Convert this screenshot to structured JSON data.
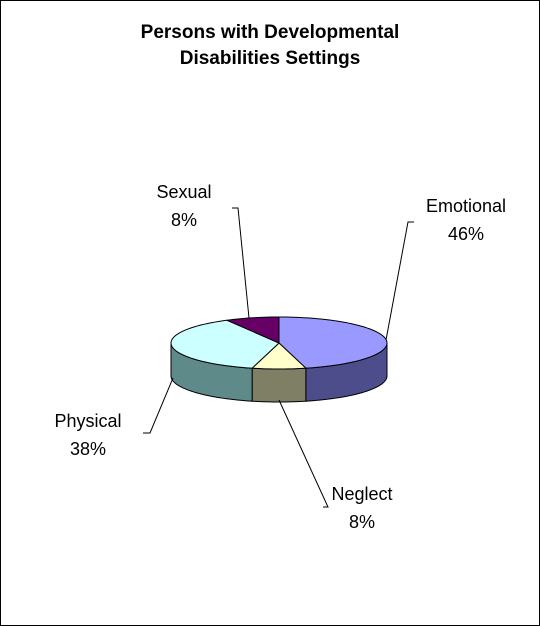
{
  "chart_data": {
    "type": "pie",
    "title_lines": [
      "Persons with Developmental",
      "Disabilities Settings"
    ],
    "slices": [
      {
        "name": "Emotional",
        "value": 46,
        "label": "46%",
        "color": "#9999FF",
        "side_color": "#4D4D8C"
      },
      {
        "name": "Neglect",
        "value": 8,
        "label": "8%",
        "color": "#FFFFCC",
        "side_color": "#7F7F66"
      },
      {
        "name": "Physical",
        "value": 38,
        "label": "38%",
        "color": "#CCFFFF",
        "side_color": "#5F8A8A"
      },
      {
        "name": "Sexual",
        "value": 8,
        "label": "8%",
        "color": "#660066",
        "side_color": "#330033"
      }
    ],
    "style": "3d",
    "legend": "none"
  }
}
